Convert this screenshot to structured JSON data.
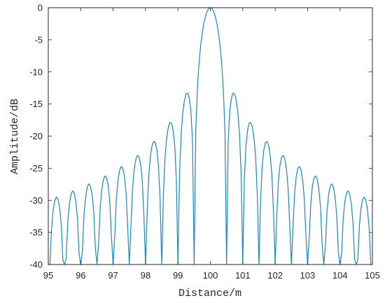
{
  "colors": {
    "line": "#1b87c2",
    "axis": "#262626"
  },
  "chart_data": {
    "type": "line",
    "xlabel": "Distance/m",
    "ylabel": "Amplitude/dB",
    "xlim": [
      95,
      105
    ],
    "ylim": [
      -40,
      0
    ],
    "grid": false,
    "xticks": [
      95,
      96,
      97,
      98,
      99,
      100,
      101,
      102,
      103,
      104,
      105
    ],
    "yticks": [
      0,
      -5,
      -10,
      -15,
      -20,
      -25,
      -30,
      -35,
      -40
    ],
    "x": [
      95,
      95.05,
      95.1,
      95.15,
      95.2,
      95.25,
      95.3,
      95.35,
      95.4,
      95.45,
      95.5,
      95.55,
      95.6,
      95.65,
      95.7,
      95.75,
      95.8,
      95.85,
      95.9,
      95.95,
      96,
      96.05,
      96.1,
      96.15,
      96.2,
      96.25,
      96.3,
      96.35,
      96.4,
      96.45,
      96.5,
      96.55,
      96.6,
      96.65,
      96.7,
      96.75,
      96.8,
      96.85,
      96.9,
      96.95,
      97,
      97.05,
      97.1,
      97.15,
      97.2,
      97.25,
      97.3,
      97.35,
      97.4,
      97.45,
      97.5,
      97.55,
      97.6,
      97.65,
      97.7,
      97.75,
      97.8,
      97.85,
      97.9,
      97.95,
      98,
      98.05,
      98.1,
      98.15,
      98.2,
      98.25,
      98.3,
      98.35,
      98.4,
      98.45,
      98.5,
      98.55,
      98.6,
      98.65,
      98.7,
      98.75,
      98.8,
      98.85,
      98.9,
      98.95,
      99,
      99.05,
      99.1,
      99.15,
      99.2,
      99.25,
      99.3,
      99.35,
      99.4,
      99.45,
      99.5,
      99.55,
      99.6,
      99.65,
      99.7,
      99.75,
      99.8,
      99.85,
      99.9,
      99.95,
      100,
      100.05,
      100.1,
      100.15,
      100.2,
      100.25,
      100.3,
      100.35,
      100.4,
      100.45,
      100.5,
      100.55,
      100.6,
      100.65,
      100.7,
      100.75,
      100.8,
      100.85,
      100.9,
      100.95,
      101,
      101.05,
      101.1,
      101.15,
      101.2,
      101.25,
      101.3,
      101.35,
      101.4,
      101.45,
      101.5,
      101.55,
      101.6,
      101.65,
      101.7,
      101.75,
      101.8,
      101.85,
      101.9,
      101.95,
      102,
      102.05,
      102.1,
      102.15,
      102.2,
      102.25,
      102.3,
      102.35,
      102.4,
      102.45,
      102.5,
      102.55,
      102.6,
      102.65,
      102.7,
      102.75,
      102.8,
      102.85,
      102.9,
      102.95,
      103,
      103.05,
      103.1,
      103.15,
      103.2,
      103.25,
      103.3,
      103.35,
      103.4,
      103.45,
      103.5,
      103.55,
      103.6,
      103.65,
      103.7,
      103.75,
      103.8,
      103.85,
      103.9,
      103.95,
      104,
      104.05,
      104.1,
      104.15,
      104.2,
      104.25,
      104.3,
      104.35,
      104.4,
      104.45,
      104.5,
      104.55,
      104.6,
      104.65,
      104.7,
      104.75,
      104.8,
      104.85,
      104.9,
      104.95,
      105
    ],
    "series": [
      {
        "values": [
          -40,
          -40,
          -34.38,
          -31.52,
          -30.02,
          -29.5,
          -29.84,
          -31.15,
          -33.83,
          -39.32,
          -40,
          -39.13,
          -33.45,
          -30.57,
          -29.07,
          -28.53,
          -28.86,
          -30.17,
          -32.83,
          -38.31,
          -40,
          -38.1,
          -32.4,
          -29.51,
          -28.0,
          -27.44,
          -27.76,
          -29.05,
          -31.71,
          -37.17,
          -40,
          -36.92,
          -31.21,
          -28.31,
          -26.77,
          -26.2,
          -26.5,
          -27.77,
          -30.41,
          -35.85,
          -40,
          -35.56,
          -29.83,
          -26.9,
          -25.34,
          -24.75,
          -25.03,
          -26.27,
          -28.88,
          -34.29,
          -40,
          -33.95,
          -28.18,
          -25.23,
          -23.63,
          -23.01,
          -23.25,
          -24.45,
          -27.02,
          -32.4,
          -40,
          -31.96,
          -26.15,
          -23.15,
          -21.51,
          -20.82,
          -21.01,
          -22.15,
          -24.66,
          -29.97,
          -40,
          -29.39,
          -23.5,
          -20.41,
          -18.68,
          -17.9,
          -17.98,
          -19.02,
          -21.41,
          -26.59,
          -40,
          -25.72,
          -19.66,
          -16.39,
          -14.46,
          -13.46,
          -13.3,
          -14.06,
          -16.14,
          -20.97,
          -40,
          -19.23,
          -12.62,
          -8.69,
          -5.94,
          -3.92,
          -2.42,
          -1.33,
          -0.58,
          -0.14,
          0,
          -0.14,
          -0.58,
          -1.33,
          -2.42,
          -3.92,
          -5.94,
          -8.69,
          -12.62,
          -19.23,
          -40,
          -20.97,
          -16.14,
          -14.06,
          -13.3,
          -13.46,
          -14.46,
          -16.39,
          -19.66,
          -25.72,
          -40,
          -26.59,
          -21.41,
          -19.02,
          -17.98,
          -17.9,
          -18.68,
          -20.41,
          -23.5,
          -29.39,
          -40,
          -29.97,
          -24.66,
          -22.15,
          -21.01,
          -20.82,
          -21.51,
          -23.15,
          -26.15,
          -31.96,
          -40,
          -32.4,
          -27.02,
          -24.45,
          -23.25,
          -23.01,
          -23.63,
          -25.23,
          -28.18,
          -33.95,
          -40,
          -34.29,
          -28.88,
          -26.27,
          -25.03,
          -24.75,
          -25.34,
          -26.9,
          -29.83,
          -35.56,
          -40,
          -35.85,
          -30.41,
          -27.77,
          -26.5,
          -26.2,
          -26.77,
          -28.31,
          -31.21,
          -36.92,
          -40,
          -37.17,
          -31.71,
          -29.05,
          -27.76,
          -27.44,
          -28.0,
          -29.51,
          -32.4,
          -38.1,
          -40,
          -38.31,
          -32.83,
          -30.17,
          -28.86,
          -28.53,
          -29.07,
          -30.57,
          -33.45,
          -39.13,
          -40,
          -39.32,
          -33.83,
          -31.15,
          -29.84,
          -29.5,
          -30.02,
          -31.52,
          -34.38,
          -40,
          -40
        ]
      }
    ]
  }
}
